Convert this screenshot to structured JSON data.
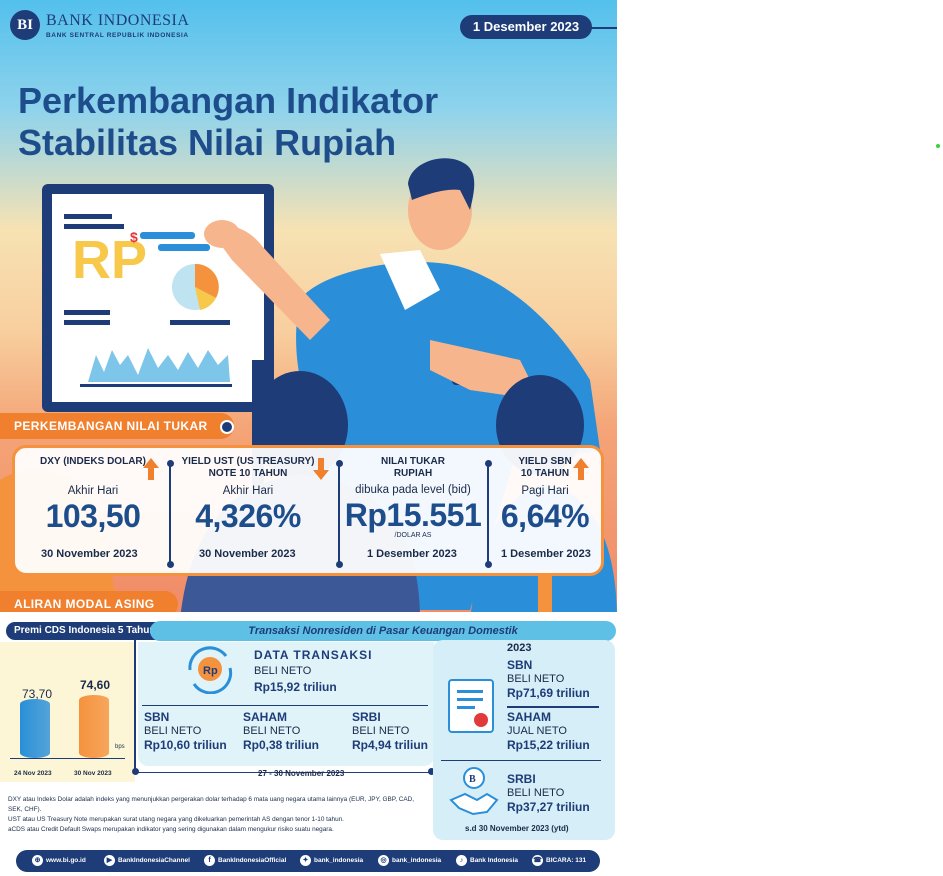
{
  "header": {
    "logo_mark": "BI",
    "brand": "BANK INDONESIA",
    "brand_sub": "BANK SENTRAL REPUBLIK INDONESIA",
    "date": "1 Desember 2023",
    "title_line1": "Perkembangan Indikator",
    "title_line2": "Stabilitas Nilai Rupiah"
  },
  "section_exchange": {
    "label": "PERKEMBANGAN NILAI TUKAR"
  },
  "indicators": [
    {
      "label": "DXY (INDEKS DOLAR)",
      "label2": "",
      "sublabel": "Akhir Hari",
      "value": "103,50",
      "unit": "",
      "date": "30 November 2023",
      "trend": "up"
    },
    {
      "label": "YIELD UST (US TREASURY)",
      "label2": "NOTE 10 TAHUN",
      "sublabel": "Akhir Hari",
      "value": "4,326%",
      "unit": "",
      "date": "30 November 2023",
      "trend": "down"
    },
    {
      "label": "NILAI TUKAR",
      "label2": "RUPIAH",
      "sublabel": "dibuka pada level (bid)",
      "value": "Rp15.551",
      "unit": "/DOLAR AS",
      "date": "1 Desember 2023",
      "trend": "none"
    },
    {
      "label": "YIELD SBN",
      "label2": "10 TAHUN",
      "sublabel": "Pagi Hari",
      "value": "6,64%",
      "unit": "",
      "date": "1 Desember 2023",
      "trend": "up"
    }
  ],
  "section_flow": {
    "label": "ALIRAN MODAL ASING"
  },
  "cds": {
    "title": "Premi CDS Indonesia 5 Tahun",
    "unit": "bps",
    "bars": [
      {
        "date": "24 Nov 2023",
        "value": "73,70",
        "level": 73.7,
        "color": "#2a8fd8"
      },
      {
        "date": "30 Nov 2023",
        "value": "74,60",
        "level": 74.6,
        "color": "#f5923e"
      }
    ]
  },
  "transactions": {
    "title": "Transaksi Nonresiden di Pasar Keuangan Domestik",
    "data_title": "DATA TRANSAKSI",
    "data_status": "BELI NETO",
    "data_value": "Rp15,92 triliun",
    "items": [
      {
        "name": "SBN",
        "status": "BELI NETO",
        "value": "Rp10,60 triliun"
      },
      {
        "name": "SAHAM",
        "status": "BELI NETO",
        "value": "Rp0,38 triliun"
      },
      {
        "name": "SRBI",
        "status": "BELI NETO",
        "value": "Rp4,94 triliun"
      }
    ],
    "period": "27 - 30 November 2023"
  },
  "year_summary": {
    "year": "2023",
    "items": [
      {
        "name": "SBN",
        "status": "BELI NETO",
        "value": "Rp71,69 triliun"
      },
      {
        "name": "SAHAM",
        "status": "JUAL NETO",
        "value": "Rp15,22 triliun"
      },
      {
        "name": "SRBI",
        "status": "BELI NETO",
        "value": "Rp37,27 triliun"
      }
    ],
    "note": "s.d 30 November 2023 (ytd)"
  },
  "footnotes": [
    "DXY atau Indeks Dolar adalah indeks yang menunjukkan pergerakan dolar terhadap 6 mata uang negara utama lainnya (EUR, JPY, GBP, CAD, SEK, CHF).",
    "UST atau US Treasury Note merupakan surat utang negara yang dikeluarkan pemerintah AS dengan tenor 1-10 tahun.",
    "aCDS atau Credit Default Swaps merupakan indikator yang sering digunakan dalam mengukur risiko suatu negara."
  ],
  "social": [
    {
      "icon": "globe-icon",
      "glyph": "⊕",
      "text": "www.bi.go.id"
    },
    {
      "icon": "youtube-icon",
      "glyph": "▶",
      "text": "BankIndonesiaChannel"
    },
    {
      "icon": "facebook-icon",
      "glyph": "f",
      "text": "BankIndonesiaOfficial"
    },
    {
      "icon": "twitter-icon",
      "glyph": "✦",
      "text": "bank_indonesia"
    },
    {
      "icon": "instagram-icon",
      "glyph": "◎",
      "text": "bank_indonesia"
    },
    {
      "icon": "tiktok-icon",
      "glyph": "♪",
      "text": "Bank Indonesia"
    },
    {
      "icon": "phone-icon",
      "glyph": "☎",
      "text": "BICARA: 131"
    }
  ],
  "illustration": {
    "board_letters": "RP",
    "board_symbol": "$"
  }
}
